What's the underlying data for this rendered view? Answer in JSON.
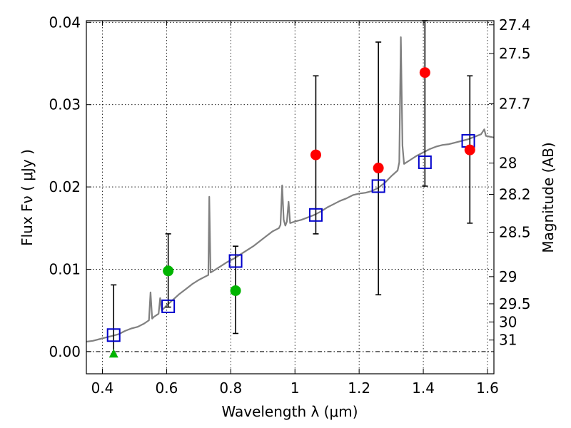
{
  "chart_data": {
    "type": "scatter",
    "title": "",
    "xlabel": "Wavelength  λ (μm)",
    "ylabel_left": "Flux  Fν  ( μJy )",
    "ylabel_right": "Magnitude (AB)",
    "xlim": [
      0.35,
      1.62
    ],
    "ylim": [
      -0.0027,
      0.0402
    ],
    "grid": true,
    "x_ticks": [
      0.4,
      0.6,
      0.8,
      1.0,
      1.2,
      1.4,
      1.6
    ],
    "x_tick_labels": [
      "0.4",
      "0.6",
      "0.8",
      "1",
      "1.2",
      "1.4",
      "1.6"
    ],
    "y_ticks": [
      0.0,
      0.01,
      0.02,
      0.03,
      0.04
    ],
    "y_tick_labels": [
      "0.00",
      "0.01",
      "0.02",
      "0.03",
      "0.04"
    ],
    "right_ticks": [
      {
        "label": "27.4",
        "flux": 0.0397
      },
      {
        "label": "27.5",
        "flux": 0.0362
      },
      {
        "label": "27.7",
        "flux": 0.0301
      },
      {
        "label": "28",
        "flux": 0.0229
      },
      {
        "label": "28.2",
        "flux": 0.0191
      },
      {
        "label": "28.5",
        "flux": 0.0145
      },
      {
        "label": "29",
        "flux": 0.0091
      },
      {
        "label": "29.5",
        "flux": 0.0058
      },
      {
        "label": "30",
        "flux": 0.0036
      },
      {
        "label": "31",
        "flux": 0.0014
      }
    ],
    "colors": {
      "spectrum": "#808080",
      "model": "#0000cc",
      "detection_green": "#00b400",
      "detection_red": "#ff0000",
      "errorbar": "#000000",
      "zero_line": "#000000"
    },
    "series": [
      {
        "name": "model spectrum",
        "kind": "line",
        "points": [
          [
            0.35,
            0.0012
          ],
          [
            0.37,
            0.0013
          ],
          [
            0.39,
            0.0015
          ],
          [
            0.41,
            0.0017
          ],
          [
            0.43,
            0.0019
          ],
          [
            0.45,
            0.0021
          ],
          [
            0.47,
            0.0025
          ],
          [
            0.49,
            0.0028
          ],
          [
            0.51,
            0.003
          ],
          [
            0.53,
            0.0034
          ],
          [
            0.545,
            0.0038
          ],
          [
            0.55,
            0.0072
          ],
          [
            0.555,
            0.004
          ],
          [
            0.56,
            0.0042
          ],
          [
            0.575,
            0.0046
          ],
          [
            0.58,
            0.0065
          ],
          [
            0.585,
            0.005
          ],
          [
            0.6,
            0.0056
          ],
          [
            0.62,
            0.0063
          ],
          [
            0.64,
            0.007
          ],
          [
            0.66,
            0.0076
          ],
          [
            0.68,
            0.0082
          ],
          [
            0.7,
            0.0087
          ],
          [
            0.72,
            0.0091
          ],
          [
            0.73,
            0.0093
          ],
          [
            0.733,
            0.0188
          ],
          [
            0.737,
            0.0096
          ],
          [
            0.75,
            0.0099
          ],
          [
            0.77,
            0.0104
          ],
          [
            0.79,
            0.0109
          ],
          [
            0.81,
            0.0113
          ],
          [
            0.83,
            0.0118
          ],
          [
            0.85,
            0.0123
          ],
          [
            0.87,
            0.0128
          ],
          [
            0.89,
            0.0134
          ],
          [
            0.91,
            0.014
          ],
          [
            0.93,
            0.0146
          ],
          [
            0.95,
            0.015
          ],
          [
            0.955,
            0.0154
          ],
          [
            0.96,
            0.0202
          ],
          [
            0.965,
            0.016
          ],
          [
            0.97,
            0.0153
          ],
          [
            0.975,
            0.0158
          ],
          [
            0.98,
            0.0182
          ],
          [
            0.985,
            0.0156
          ],
          [
            1.0,
            0.0158
          ],
          [
            1.02,
            0.016
          ],
          [
            1.04,
            0.0163
          ],
          [
            1.06,
            0.0166
          ],
          [
            1.08,
            0.017
          ],
          [
            1.1,
            0.0175
          ],
          [
            1.12,
            0.0179
          ],
          [
            1.14,
            0.0183
          ],
          [
            1.16,
            0.0186
          ],
          [
            1.18,
            0.019
          ],
          [
            1.2,
            0.0192
          ],
          [
            1.22,
            0.0193
          ],
          [
            1.24,
            0.0195
          ],
          [
            1.26,
            0.0199
          ],
          [
            1.28,
            0.0205
          ],
          [
            1.3,
            0.0213
          ],
          [
            1.32,
            0.022
          ],
          [
            1.325,
            0.023
          ],
          [
            1.33,
            0.0382
          ],
          [
            1.335,
            0.025
          ],
          [
            1.34,
            0.0228
          ],
          [
            1.36,
            0.0233
          ],
          [
            1.38,
            0.0238
          ],
          [
            1.4,
            0.0242
          ],
          [
            1.42,
            0.0246
          ],
          [
            1.44,
            0.0249
          ],
          [
            1.46,
            0.0251
          ],
          [
            1.48,
            0.0252
          ],
          [
            1.5,
            0.0254
          ],
          [
            1.52,
            0.0256
          ],
          [
            1.54,
            0.0258
          ],
          [
            1.56,
            0.0261
          ],
          [
            1.58,
            0.0264
          ],
          [
            1.59,
            0.027
          ],
          [
            1.595,
            0.0262
          ],
          [
            1.62,
            0.026
          ]
        ]
      },
      {
        "name": "model photometry",
        "kind": "open-square",
        "x": [
          0.435,
          0.605,
          0.815,
          1.065,
          1.26,
          1.405,
          1.54
        ],
        "y": [
          0.002,
          0.0055,
          0.011,
          0.0166,
          0.0201,
          0.023,
          0.0256
        ]
      },
      {
        "name": "observed flux (green)",
        "kind": "filled-circle",
        "x": [
          0.605,
          0.815
        ],
        "y": [
          0.0098,
          0.0074
        ]
      },
      {
        "name": "observed flux (red)",
        "kind": "filled-circle",
        "x": [
          1.065,
          1.26,
          1.405,
          1.545
        ],
        "y": [
          0.0239,
          0.0223,
          0.0339,
          0.0245
        ]
      },
      {
        "name": "upper limit",
        "kind": "triangle",
        "x": [
          0.435
        ],
        "y": [
          -0.0003
        ]
      },
      {
        "name": "error bars",
        "kind": "errorbar",
        "bars": [
          {
            "x": 0.435,
            "low": -0.0003,
            "high": 0.0081
          },
          {
            "x": 0.605,
            "low": 0.0054,
            "high": 0.0143
          },
          {
            "x": 0.815,
            "low": 0.0022,
            "high": 0.0128
          },
          {
            "x": 1.065,
            "low": 0.0143,
            "high": 0.0335
          },
          {
            "x": 1.26,
            "low": 0.0069,
            "high": 0.0376
          },
          {
            "x": 1.405,
            "low": 0.0201,
            "high": 0.0402
          },
          {
            "x": 1.545,
            "low": 0.0156,
            "high": 0.0335
          }
        ]
      }
    ]
  }
}
